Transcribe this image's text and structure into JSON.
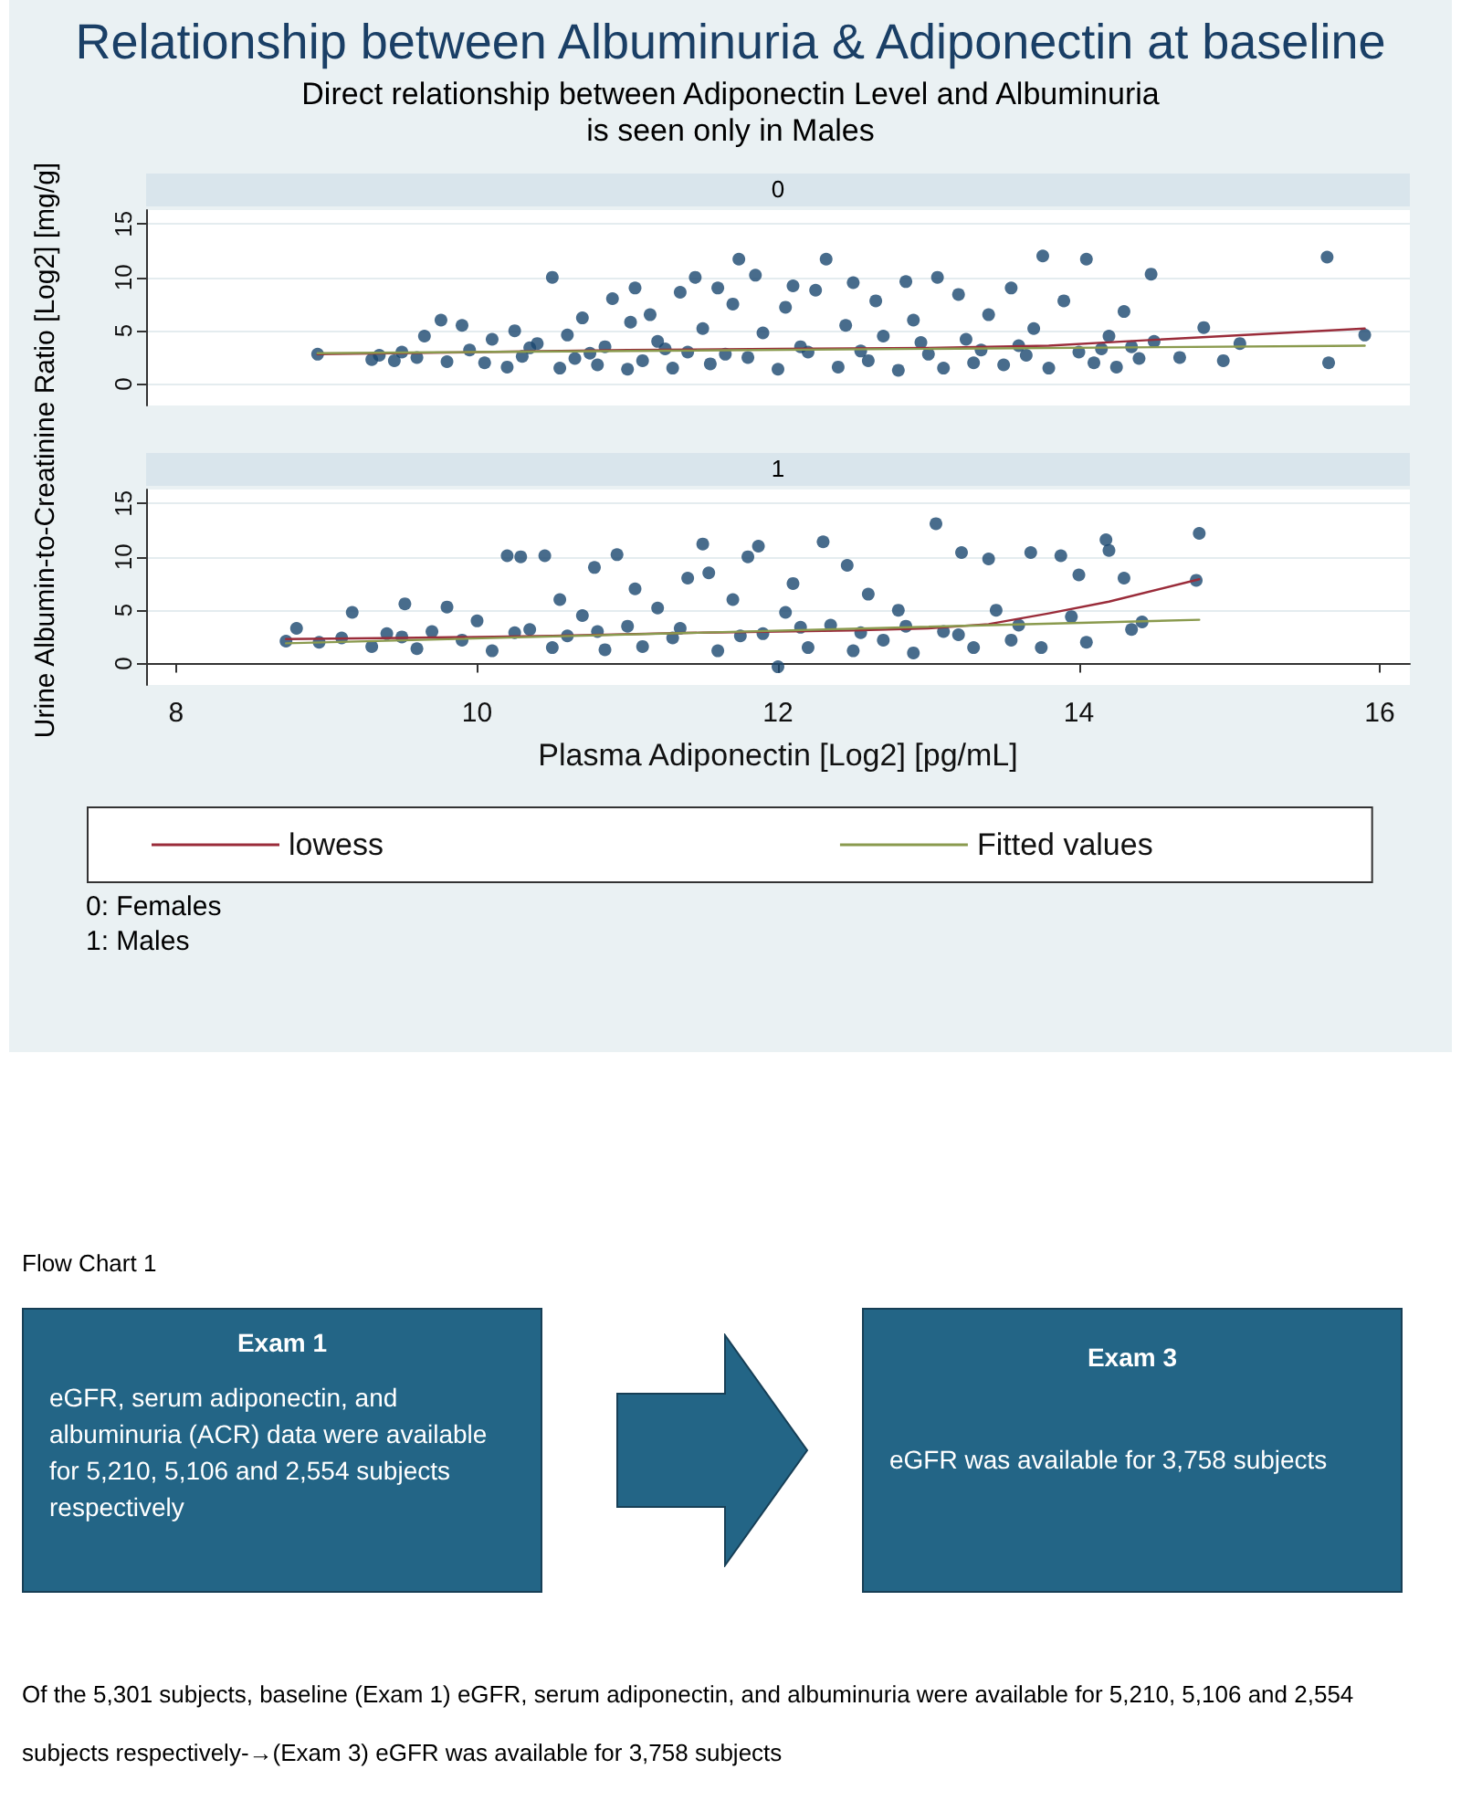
{
  "chart_data": [
    {
      "type": "scatter",
      "title": "Relationship between Albuminuria & Adiponectin at baseline",
      "subtitle": "Direct relationship between Adiponectin Level and Albuminuria\nis seen only in Males",
      "ylabel": "Urine Albumin-to-Creatinine Ratio [Log2] [mg/g]",
      "annotations": [
        "0"
      ],
      "xlim": [
        7.8,
        16.2
      ],
      "xticks": [
        8,
        10,
        12,
        14,
        16
      ],
      "ylim": [
        -2,
        16.3
      ],
      "yticks": [
        0,
        5,
        10,
        15
      ],
      "grid": "y",
      "tick_labels": "y",
      "legend": false,
      "series": [
        {
          "type": "scatter",
          "marker": "circle",
          "color": "#1a476f",
          "x": [
            8.94,
            9.3,
            9.35,
            9.45,
            9.5,
            9.6,
            9.65,
            9.76,
            9.8,
            9.9,
            9.95,
            10.05,
            10.1,
            10.2,
            10.25,
            10.3,
            10.4,
            10.5,
            10.55,
            10.6,
            10.65,
            10.7,
            10.8,
            10.85,
            10.9,
            11.0,
            11.02,
            11.05,
            11.1,
            11.15,
            11.2,
            11.3,
            11.35,
            11.4,
            11.45,
            11.5,
            11.55,
            11.6,
            11.7,
            11.74,
            11.8,
            11.85,
            11.9,
            12.0,
            12.05,
            12.1,
            12.2,
            12.25,
            12.32,
            12.4,
            12.45,
            12.5,
            12.6,
            12.65,
            12.7,
            12.8,
            12.85,
            12.9,
            13.0,
            13.06,
            13.1,
            13.2,
            13.25,
            13.3,
            13.4,
            13.5,
            13.55,
            13.6,
            13.7,
            13.76,
            13.8,
            13.9,
            14.0,
            14.05,
            14.1,
            14.2,
            14.25,
            14.3,
            14.35,
            14.4,
            14.48,
            14.5,
            14.67,
            14.83,
            14.96,
            15.07,
            15.65,
            15.66,
            15.9,
            10.35,
            10.75,
            11.25,
            11.65,
            12.15,
            12.55,
            12.95,
            13.35,
            13.65,
            14.15
          ],
          "values": [
            2.8,
            2.3,
            2.7,
            2.2,
            3.0,
            2.5,
            4.5,
            6.0,
            2.1,
            5.5,
            3.2,
            2.0,
            4.2,
            1.6,
            5.0,
            2.6,
            3.8,
            10.0,
            1.5,
            4.6,
            2.4,
            6.2,
            1.8,
            3.5,
            8.0,
            1.4,
            5.8,
            9.0,
            2.2,
            6.5,
            4.0,
            1.5,
            8.6,
            3.0,
            10.0,
            5.2,
            1.9,
            9.0,
            7.5,
            11.7,
            2.5,
            10.2,
            4.8,
            1.4,
            7.2,
            9.2,
            3.0,
            8.8,
            11.7,
            1.6,
            5.5,
            9.5,
            2.2,
            7.8,
            4.5,
            1.3,
            9.6,
            6.0,
            2.8,
            10.0,
            1.5,
            8.4,
            4.2,
            2.0,
            6.5,
            1.8,
            9.0,
            3.6,
            5.2,
            12.0,
            1.5,
            7.8,
            3.0,
            11.7,
            2.0,
            4.5,
            1.6,
            6.8,
            3.5,
            2.4,
            10.3,
            4.0,
            2.5,
            5.3,
            2.2,
            3.8,
            11.9,
            2.0,
            4.6,
            3.4,
            2.9,
            3.3,
            2.8,
            3.5,
            3.1,
            3.9,
            3.2,
            2.7,
            3.3
          ]
        },
        {
          "type": "line",
          "marker": "none",
          "color": "#9a2c3a",
          "x": [
            8.94,
            10,
            11,
            12,
            13,
            13.8,
            14.3,
            15.9
          ],
          "values": [
            2.8,
            3.0,
            3.2,
            3.3,
            3.4,
            3.6,
            4.0,
            5.2
          ]
        },
        {
          "type": "line",
          "marker": "none",
          "color": "#8a9a4e",
          "x": [
            8.94,
            15.9
          ],
          "values": [
            2.9,
            3.6
          ]
        }
      ]
    },
    {
      "type": "scatter",
      "xlabel": "Plasma Adiponectin [Log2] [pg/mL]",
      "annotations": [
        "1",
        "0: Females",
        "1: Males"
      ],
      "xlim": [
        7.8,
        16.2
      ],
      "xticks": [
        8,
        10,
        12,
        14,
        16
      ],
      "ylim": [
        -2,
        16.3
      ],
      "yticks": [
        0,
        5,
        10,
        15
      ],
      "grid": "y",
      "legend": "bottom",
      "series": [
        {
          "type": "scatter",
          "marker": "circle",
          "color": "#1a476f",
          "x": [
            8.73,
            8.8,
            8.95,
            9.1,
            9.17,
            9.3,
            9.4,
            9.52,
            9.6,
            9.7,
            9.8,
            9.9,
            10.0,
            10.1,
            10.2,
            10.29,
            10.35,
            10.45,
            10.5,
            10.55,
            10.6,
            10.7,
            10.78,
            10.85,
            10.93,
            11.0,
            11.05,
            11.1,
            11.2,
            11.3,
            11.4,
            11.5,
            11.54,
            11.6,
            11.7,
            11.8,
            11.87,
            11.9,
            12.0,
            12.05,
            12.1,
            12.2,
            12.3,
            12.35,
            12.46,
            12.5,
            12.6,
            12.7,
            12.8,
            12.9,
            13.05,
            13.1,
            13.22,
            13.3,
            13.4,
            13.45,
            13.55,
            13.68,
            13.75,
            13.88,
            13.95,
            14.0,
            14.05,
            14.18,
            14.2,
            14.3,
            14.35,
            14.42,
            14.78,
            14.8,
            9.5,
            10.25,
            10.8,
            11.35,
            11.75,
            12.15,
            12.55,
            12.85,
            13.2,
            13.6
          ],
          "values": [
            2.1,
            3.3,
            2.0,
            2.4,
            4.8,
            1.6,
            2.8,
            5.6,
            1.4,
            3.0,
            5.3,
            2.2,
            4.0,
            1.2,
            10.1,
            10.0,
            3.2,
            10.1,
            1.5,
            6.0,
            2.6,
            4.5,
            9.0,
            1.3,
            10.2,
            3.5,
            7.0,
            1.6,
            5.2,
            2.4,
            8.0,
            11.2,
            8.5,
            1.2,
            6.0,
            10.0,
            11.0,
            2.8,
            -0.3,
            4.8,
            7.5,
            1.5,
            11.4,
            3.6,
            9.2,
            1.2,
            6.5,
            2.2,
            5.0,
            1.0,
            13.1,
            3.0,
            10.4,
            1.5,
            9.8,
            5.0,
            2.2,
            10.4,
            1.5,
            10.1,
            4.4,
            8.3,
            2.0,
            11.6,
            10.6,
            8.0,
            3.2,
            3.9,
            7.8,
            12.2,
            2.5,
            2.9,
            3.0,
            3.3,
            2.6,
            3.4,
            2.9,
            3.5,
            2.7,
            3.6
          ]
        },
        {
          "type": "line",
          "name": "lowess",
          "marker": "none",
          "color": "#9a2c3a",
          "x": [
            8.73,
            9.5,
            10.5,
            11.5,
            12.5,
            13.0,
            13.4,
            13.8,
            14.2,
            14.8
          ],
          "values": [
            2.3,
            2.4,
            2.6,
            2.9,
            3.1,
            3.3,
            3.7,
            4.7,
            5.8,
            7.9
          ]
        },
        {
          "type": "line",
          "name": "Fitted values",
          "marker": "none",
          "color": "#8a9a4e",
          "x": [
            8.73,
            14.8
          ],
          "values": [
            1.9,
            4.1
          ]
        }
      ]
    },
    {
      "type": "other",
      "title": "Flow Chart 1",
      "annotations": [
        "Exam 1",
        "eGFR, serum adiponectin, and albuminuria (ACR) data were available for 5,210, 5,106 and 2,554 subjects respectively",
        "Exam 3",
        "eGFR was available for 3,758 subjects",
        "Of the 5,301 subjects, baseline (Exam 1) eGFR, serum adiponectin, and albuminuria were available for 5,210, 5,106 and 2,554 subjects respectively-→(Exam 3) eGFR was available for 3,758 subjects"
      ]
    }
  ]
}
